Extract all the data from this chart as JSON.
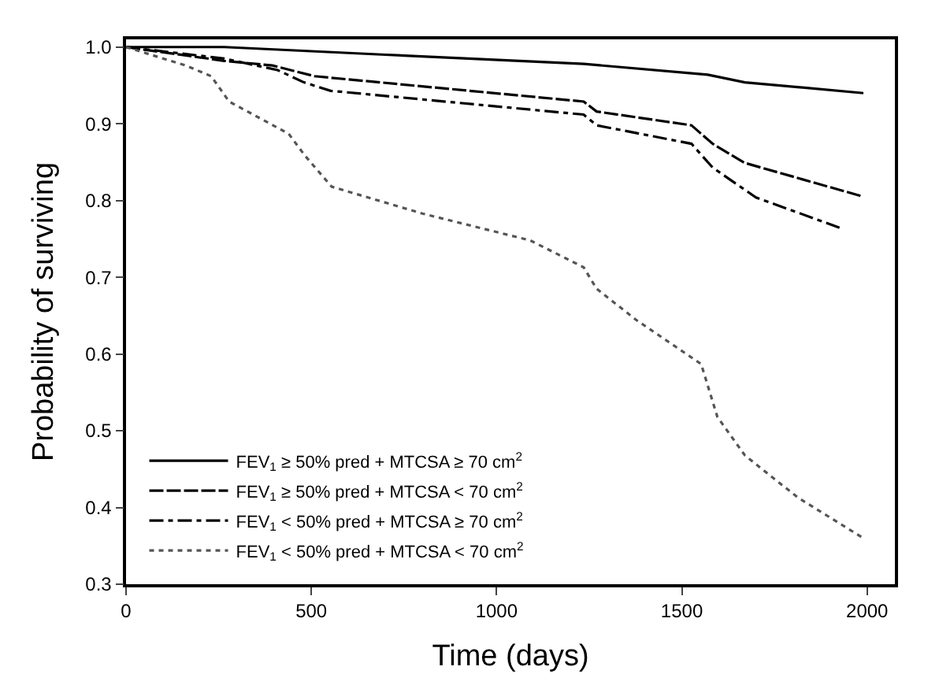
{
  "chart_data": {
    "type": "line",
    "xlabel": "Time (days)",
    "ylabel": "Probability of surviving",
    "xlim": [
      0,
      2075
    ],
    "xticks": [
      0,
      500,
      1000,
      1500,
      2000
    ],
    "ylim": [
      0.3,
      1.01
    ],
    "yticks": [
      {
        "value": 0.3,
        "label": "0.3"
      },
      {
        "value": 0.4,
        "label": "0.4"
      },
      {
        "value": 0.5,
        "label": "0.5"
      },
      {
        "value": 0.6,
        "label": "0.6"
      },
      {
        "value": 0.7,
        "label": "0.7"
      },
      {
        "value": 0.8,
        "label": "0.8"
      },
      {
        "value": 0.9,
        "label": "0.9"
      },
      {
        "value": 1.0,
        "label": "1.0"
      }
    ],
    "legend": "bottom left",
    "marker": "none",
    "series": [
      {
        "name": "FEV$_{1}$ ≥ 50% pred + MTCSA ≥ 70 cm$^{2}$",
        "color": "#000000",
        "line_style": "solid",
        "x": [
          0,
          265,
          700,
          1235,
          1570,
          1670,
          1990
        ],
        "values": [
          1.0,
          1.0,
          0.99,
          0.978,
          0.964,
          0.954,
          0.94
        ]
      },
      {
        "name": "FEV$_{1}$ ≥ 50% pred + MTCSA < 70 cm$^{2}$",
        "color": "#000000",
        "line_style": "dashed",
        "x": [
          0,
          265,
          395,
          509,
          1235,
          1270,
          1526,
          1583,
          1670,
          1990
        ],
        "values": [
          1.0,
          0.982,
          0.976,
          0.962,
          0.929,
          0.916,
          0.898,
          0.874,
          0.849,
          0.805
        ]
      },
      {
        "name": "FEV$_{1}$ < 50% pred + MTCSA ≥ 70 cm$^{2}$",
        "color": "#000000",
        "line_style": "dashdot",
        "x": [
          0,
          265,
          409,
          480,
          552,
          1235,
          1270,
          1526,
          1583,
          1700,
          1935
        ],
        "values": [
          1.0,
          0.985,
          0.97,
          0.954,
          0.943,
          0.912,
          0.898,
          0.874,
          0.843,
          0.804,
          0.763
        ]
      },
      {
        "name": "FEV$_{1}$ < 50% pred + MTCSA < 70 cm$^{2}$",
        "color": "#555555",
        "line_style": "dotted",
        "x": [
          0,
          161,
          230,
          278,
          439,
          482,
          555,
          800,
          1091,
          1235,
          1270,
          1378,
          1552,
          1596,
          1670,
          1813,
          1990
        ],
        "values": [
          1.0,
          0.976,
          0.962,
          0.929,
          0.887,
          0.859,
          0.818,
          0.783,
          0.748,
          0.713,
          0.685,
          0.644,
          0.587,
          0.518,
          0.468,
          0.413,
          0.36
        ]
      }
    ]
  }
}
